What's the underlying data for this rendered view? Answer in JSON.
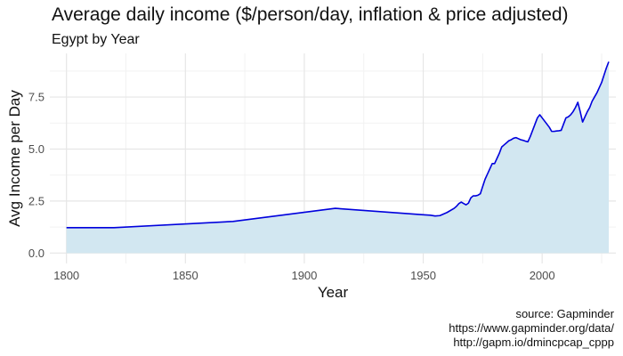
{
  "chart_data": {
    "type": "area",
    "title": "Average daily income ($/person/day, inflation & price adjusted)",
    "subtitle": "Egypt by Year",
    "xlabel": "Year",
    "ylabel": "Avg Income per Day",
    "xlim": [
      1793,
      2031
    ],
    "ylim": [
      -0.5,
      9.6
    ],
    "x_ticks": [
      1800,
      1850,
      1900,
      1950,
      2000
    ],
    "x_tick_labels": [
      "1800",
      "1850",
      "1900",
      "1950",
      "2000"
    ],
    "y_ticks": [
      0,
      2.5,
      5,
      7.5
    ],
    "y_tick_labels": [
      "0.0",
      "2.5",
      "5.0",
      "7.5"
    ],
    "grid": true,
    "line_color": "#0000dd",
    "fill_color": "#d2e7f1",
    "series": [
      {
        "x": [
          1800,
          1820,
          1870,
          1913,
          1950,
          1953,
          1955,
          1957,
          1960,
          1963,
          1964,
          1965,
          1966,
          1967,
          1968,
          1969,
          1970,
          1971,
          1972,
          1973,
          1974,
          1975,
          1976,
          1977,
          1978,
          1979,
          1980,
          1981,
          1982,
          1983,
          1984,
          1985,
          1986,
          1987,
          1988,
          1989,
          1990,
          1991,
          1992,
          1993,
          1994,
          1995,
          1996,
          1997,
          1998,
          1999,
          2000,
          2001,
          2002,
          2003,
          2004,
          2005,
          2006,
          2007,
          2008,
          2009,
          2010,
          2011,
          2012,
          2013,
          2014,
          2015,
          2016,
          2017,
          2018,
          2019,
          2020,
          2021,
          2022,
          2023,
          2024,
          2025,
          2026,
          2027,
          2028
        ],
        "y": [
          1.22,
          1.22,
          1.52,
          2.15,
          1.84,
          1.82,
          1.78,
          1.8,
          1.95,
          2.15,
          2.25,
          2.38,
          2.45,
          2.38,
          2.32,
          2.4,
          2.65,
          2.75,
          2.75,
          2.78,
          2.85,
          3.2,
          3.55,
          3.8,
          4.05,
          4.3,
          4.3,
          4.55,
          4.8,
          5.1,
          5.2,
          5.3,
          5.4,
          5.45,
          5.52,
          5.55,
          5.5,
          5.45,
          5.42,
          5.38,
          5.35,
          5.6,
          5.9,
          6.2,
          6.5,
          6.65,
          6.5,
          6.35,
          6.2,
          6.05,
          5.85,
          5.85,
          5.87,
          5.88,
          5.9,
          6.2,
          6.5,
          6.55,
          6.65,
          6.8,
          7.0,
          7.25,
          6.8,
          6.3,
          6.55,
          6.8,
          7.0,
          7.3,
          7.5,
          7.7,
          7.95,
          8.2,
          8.55,
          8.9,
          9.2
        ]
      }
    ]
  },
  "caption": {
    "line1": "source: Gapminder",
    "line2": "https://www.gapminder.org/data/",
    "line3": "http://gapm.io/dmincpcap_cppp"
  }
}
